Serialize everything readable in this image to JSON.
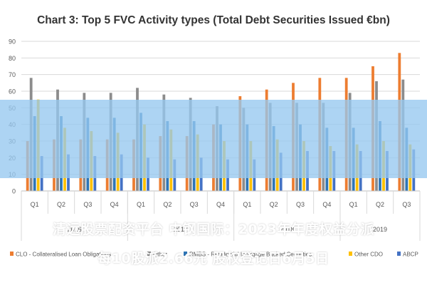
{
  "chart_data": {
    "type": "bar",
    "title": "Chart 3: Top 5 FVC Activity types (Total Debt Securities Issued €bn)",
    "xlabel": "",
    "ylabel": "",
    "ylim": [
      0,
      90
    ],
    "yticks": [
      0,
      10,
      20,
      30,
      40,
      50,
      60,
      70,
      80,
      90
    ],
    "grid": true,
    "legend_position": "bottom",
    "categories": [
      "Q1",
      "Q2",
      "Q3",
      "Q4",
      "Q1",
      "Q2",
      "Q3",
      "Q4",
      "Q1",
      "Q2",
      "Q3",
      "Q4",
      "Q1",
      "Q2",
      "Q3"
    ],
    "year_groups": [
      {
        "label": "2016",
        "count": 4
      },
      {
        "label": "2017",
        "count": 4
      },
      {
        "label": "2018",
        "count": 4
      },
      {
        "label": "2019",
        "count": 3
      }
    ],
    "series": [
      {
        "name": "CLO - Collateralised Loan Obligations",
        "color": "#ed7d31",
        "values": [
          30,
          31,
          31,
          31,
          31,
          33,
          33,
          40,
          57,
          61,
          65,
          68,
          68,
          75,
          83
        ]
      },
      {
        "name": "Other",
        "color": "#8c8c8c",
        "values": [
          68,
          61,
          59,
          59,
          62,
          58,
          56,
          51,
          50,
          53,
          53,
          53,
          59,
          66,
          67
        ]
      },
      {
        "name": "RMBS - Residential Mortgage Backed Securities",
        "color": "#2e75b6",
        "values": [
          45,
          45,
          44,
          44,
          47,
          42,
          42,
          40,
          40,
          39,
          40,
          38,
          38,
          42,
          38
        ]
      },
      {
        "name": "Other CDO",
        "color": "#ffc000",
        "values": [
          55,
          38,
          36,
          35,
          40,
          37,
          34,
          30,
          30,
          31,
          30,
          27,
          28,
          30,
          28
        ]
      },
      {
        "name": "ABCP",
        "color": "#4472c4",
        "values": [
          21,
          22,
          21,
          22,
          20,
          19,
          20,
          19,
          19,
          23,
          24,
          24,
          24,
          24,
          25
        ]
      }
    ]
  },
  "overlay": {
    "line1": "清远股票配资平台 中钢国际：2023年年度权益分派",
    "line2": "每10股派2.66元 股权登记日6月5日"
  }
}
